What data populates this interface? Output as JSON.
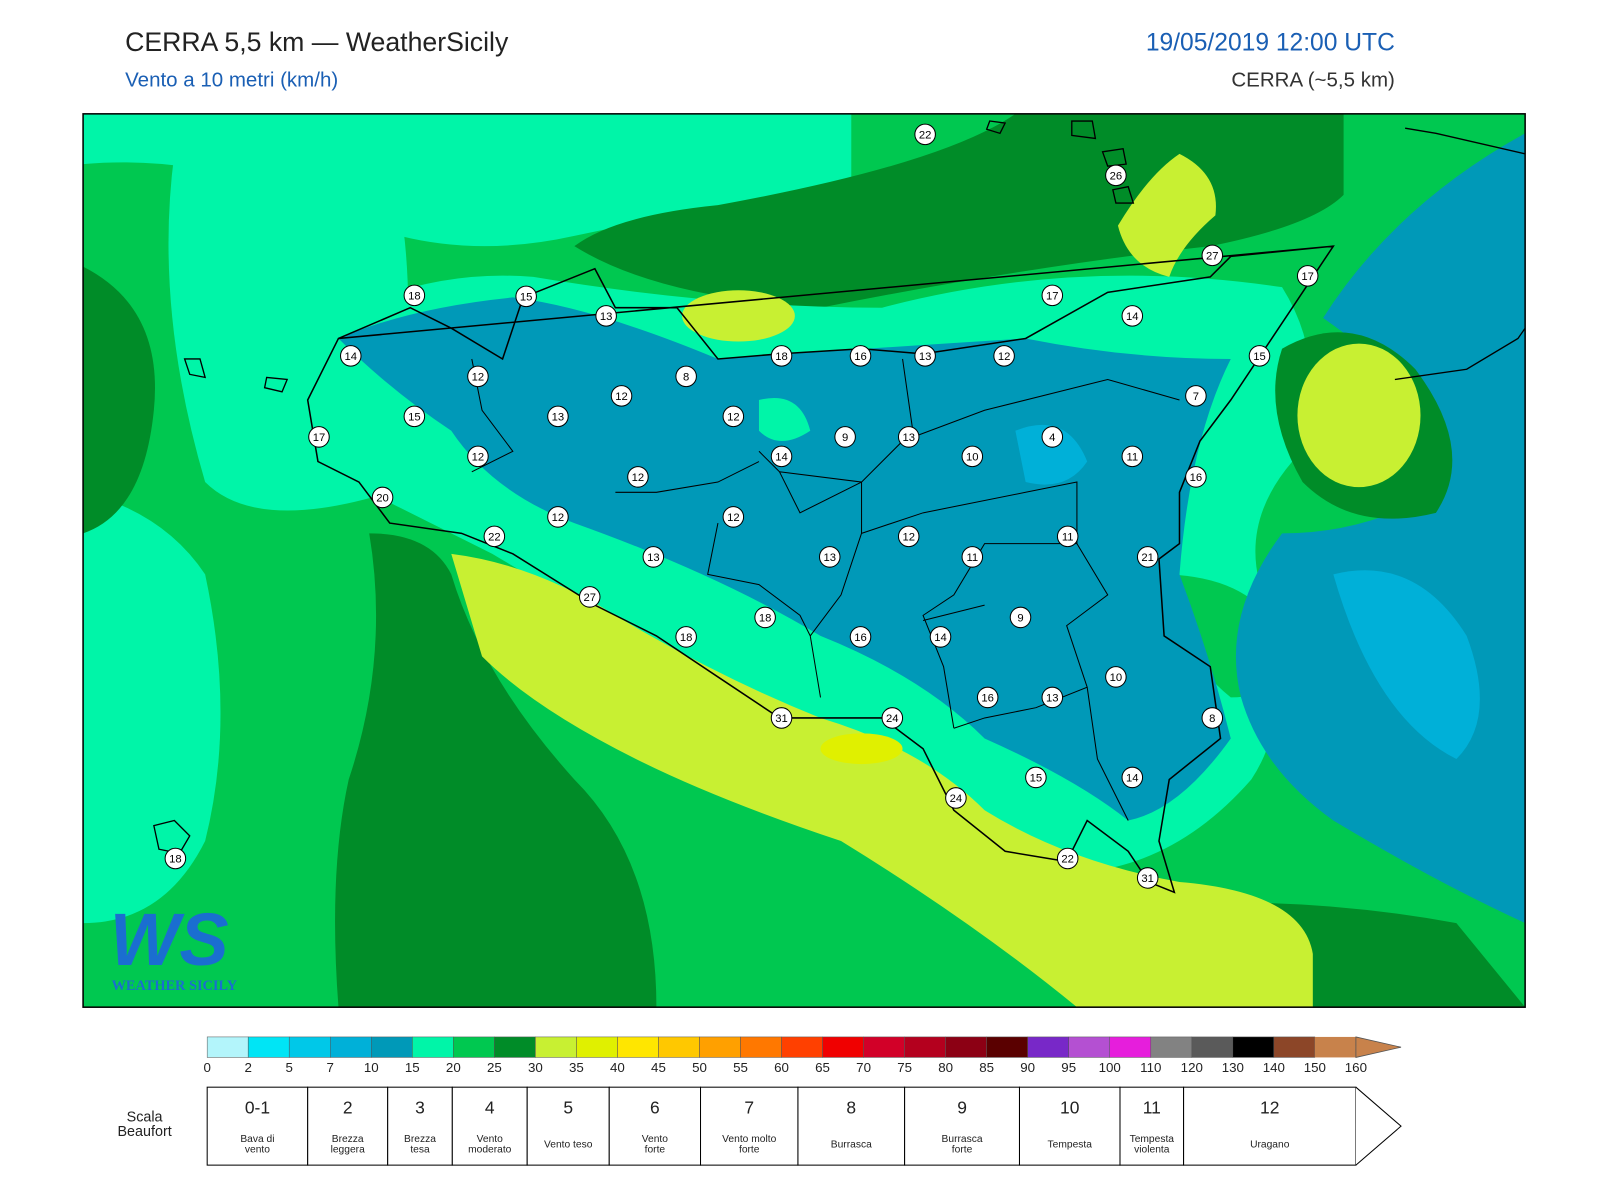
{
  "header": {
    "title": "CERRA 5,5 km — WeatherSicily",
    "subtitle": "Vento a 10 metri (km/h)",
    "datetime": "19/05/2019 12:00 UTC",
    "model": "CERRA (~5,5 km)"
  },
  "logo": {
    "mark": "WS",
    "name": "WEATHER SICILY"
  },
  "stations": [
    22,
    26,
    27,
    17,
    18,
    15,
    13,
    17,
    14,
    14,
    18,
    16,
    13,
    12,
    15,
    12,
    8,
    12,
    7,
    15,
    13,
    12,
    17,
    9,
    13,
    4,
    14,
    10,
    11,
    12,
    12,
    16,
    20,
    12,
    12,
    22,
    12,
    11,
    13,
    13,
    11,
    21,
    27,
    18,
    9,
    18,
    16,
    14,
    10,
    16,
    13,
    31,
    24,
    8,
    15,
    14,
    24,
    22,
    31,
    18
  ],
  "colorbar": {
    "ticks": [
      0,
      2,
      5,
      7,
      10,
      15,
      20,
      25,
      30,
      35,
      40,
      45,
      50,
      55,
      60,
      65,
      70,
      75,
      80,
      85,
      90,
      95,
      100,
      110,
      120,
      130,
      140,
      150,
      160
    ],
    "colors": [
      "#b3f5fb",
      "#00e5f5",
      "#00c8e8",
      "#00b0d8",
      "#0099b8",
      "#00f5a8",
      "#00c850",
      "#008c28",
      "#c8f032",
      "#e0f000",
      "#ffe600",
      "#ffc800",
      "#ffa000",
      "#ff7800",
      "#ff4000",
      "#f00000",
      "#d20028",
      "#b4001e",
      "#8c0014",
      "#5a0000",
      "#7828c8",
      "#b450d2",
      "#e61edc",
      "#828282",
      "#5a5a5a",
      "#000000",
      "#8c4628",
      "#c8824b"
    ]
  },
  "beaufort": {
    "title": [
      "Scala",
      "Beaufort"
    ],
    "levels": [
      {
        "force": "0-1",
        "description": [
          "Bava di",
          "vento"
        ]
      },
      {
        "force": "2",
        "description": [
          "Brezza",
          "leggera"
        ]
      },
      {
        "force": "3",
        "description": [
          "Brezza",
          "tesa"
        ]
      },
      {
        "force": "4",
        "description": [
          "Vento",
          "moderato"
        ]
      },
      {
        "force": "5",
        "description": [
          "Vento teso"
        ]
      },
      {
        "force": "6",
        "description": [
          "Vento",
          "forte"
        ]
      },
      {
        "force": "7",
        "description": [
          "Vento molto",
          "forte"
        ]
      },
      {
        "force": "8",
        "description": [
          "Burrasca"
        ]
      },
      {
        "force": "9",
        "description": [
          "Burrasca",
          "forte"
        ]
      },
      {
        "force": "10",
        "description": [
          "Tempesta"
        ]
      },
      {
        "force": "11",
        "description": [
          "Tempesta",
          "violenta"
        ]
      },
      {
        "force": "12",
        "description": [
          "Uragano"
        ]
      }
    ]
  }
}
